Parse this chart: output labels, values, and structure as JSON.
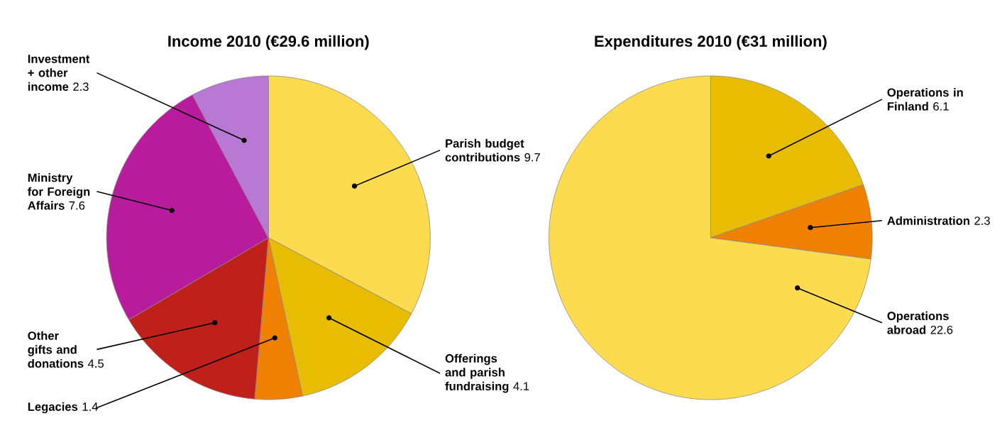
{
  "chart_data": [
    {
      "type": "pie",
      "title": "Income 2010 (€29.6 million)",
      "categories": [
        "Parish budget contributions",
        "Offerings and parish fundraising",
        "Legacies",
        "Other gifts and donations",
        "Ministry for Foreign Affairs",
        "Investment + other income"
      ],
      "values": [
        9.7,
        4.1,
        1.4,
        4.5,
        7.6,
        2.3
      ],
      "colors": [
        "#fddb4e",
        "#e8bc00",
        "#f08000",
        "#c0201a",
        "#b81c9c",
        "#b878d4"
      ],
      "data_labels": true
    },
    {
      "type": "pie",
      "title": "Expenditures 2010 (€31 million)",
      "categories": [
        "Operations in Finland",
        "Administration",
        "Operations abroad"
      ],
      "values": [
        6.1,
        2.3,
        22.6
      ],
      "colors": [
        "#e8bc00",
        "#f08000",
        "#fddb4e"
      ],
      "data_labels": true
    }
  ]
}
